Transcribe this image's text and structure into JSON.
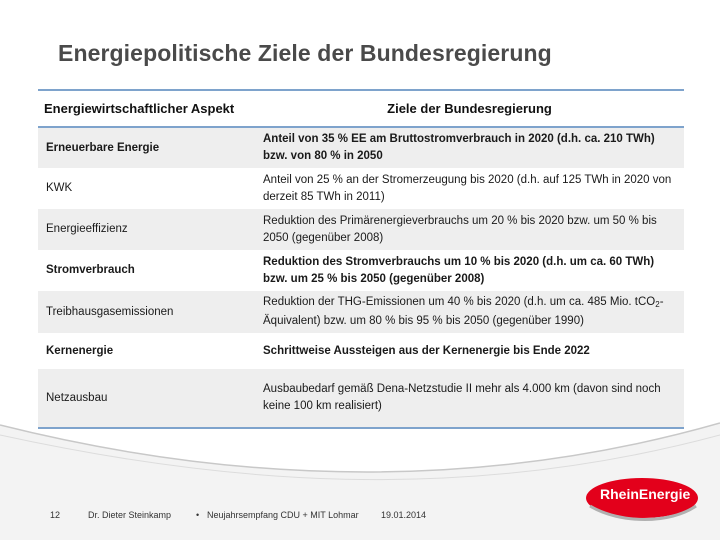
{
  "title": "Energiepolitische Ziele der Bundesregierung",
  "table": {
    "headers": [
      "Energiewirtschaftlicher Aspekt",
      "Ziele der Bundesregierung"
    ],
    "rows": [
      {
        "aspect": "Erneuerbare Energie",
        "goal": "Anteil von 35 % EE am Bruttostromverbrauch in 2020 (d.h. ca. 210 TWh) bzw. von 80 % in 2050"
      },
      {
        "aspect": "KWK",
        "goal": "Anteil von 25 % an der Stromerzeugung bis 2020 (d.h. auf 125 TWh in 2020 von derzeit 85 TWh in 2011)"
      },
      {
        "aspect": "Energieeffizienz",
        "goal": "Reduktion des Primärenergieverbrauchs um 20 % bis 2020 bzw. um 50 % bis 2050 (gegenüber 2008)"
      },
      {
        "aspect": "Stromverbrauch",
        "goal": "Reduktion des Stromverbrauchs um 10 % bis 2020 (d.h. um ca. 60 TWh) bzw. um 25 % bis 2050 (gegenüber 2008)"
      },
      {
        "aspect": "Treibhausgasemissionen",
        "goal_pre": "Reduktion der THG-Emissionen um 40 % bis 2020 (d.h. um ca. 485 Mio. tCO",
        "goal_sub": "2",
        "goal_post": "-Äquivalent) bzw. um 80 % bis 95 % bis 2050 (gegenüber 1990)"
      },
      {
        "aspect": "Kernenergie",
        "goal": "Schrittweise Aussteigen aus der Kernenergie bis Ende 2022"
      },
      {
        "aspect": "Netzausbau",
        "goal": "Ausbaubedarf gemäß Dena-Netzstudie II mehr als 4.000 km (davon sind noch keine 100 km realisiert)"
      }
    ]
  },
  "footer": {
    "page_number": "12",
    "speaker": "Dr. Dieter Steinkamp",
    "separator": "•",
    "event": "Neujahrsempfang CDU + MIT Lohmar",
    "date": "19.01.2014"
  },
  "logo": {
    "text": "RheinEnergie",
    "color": "#e3001b"
  }
}
